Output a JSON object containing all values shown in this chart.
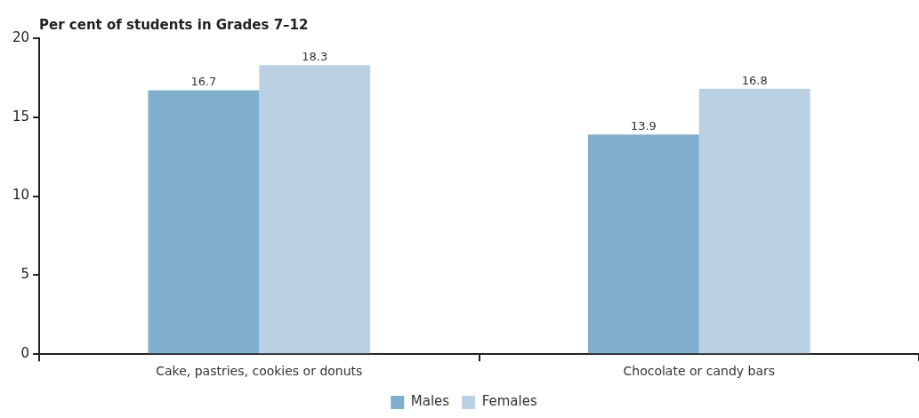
{
  "chart_data": {
    "type": "bar",
    "ylabel": "Per cent of students in Grades 7–12",
    "categories": [
      "Cake, pastries, cookies or donuts",
      "Chocolate or candy bars"
    ],
    "series": [
      {
        "name": "Males",
        "color": "#7fafcd",
        "values": [
          16.7,
          13.9
        ]
      },
      {
        "name": "Females",
        "color": "#bad1e4",
        "values": [
          18.3,
          16.8
        ]
      }
    ],
    "ylim": [
      0,
      20
    ],
    "yticks": [
      0,
      5,
      10,
      15,
      20
    ],
    "data_labels": true,
    "legend": "bottom"
  }
}
